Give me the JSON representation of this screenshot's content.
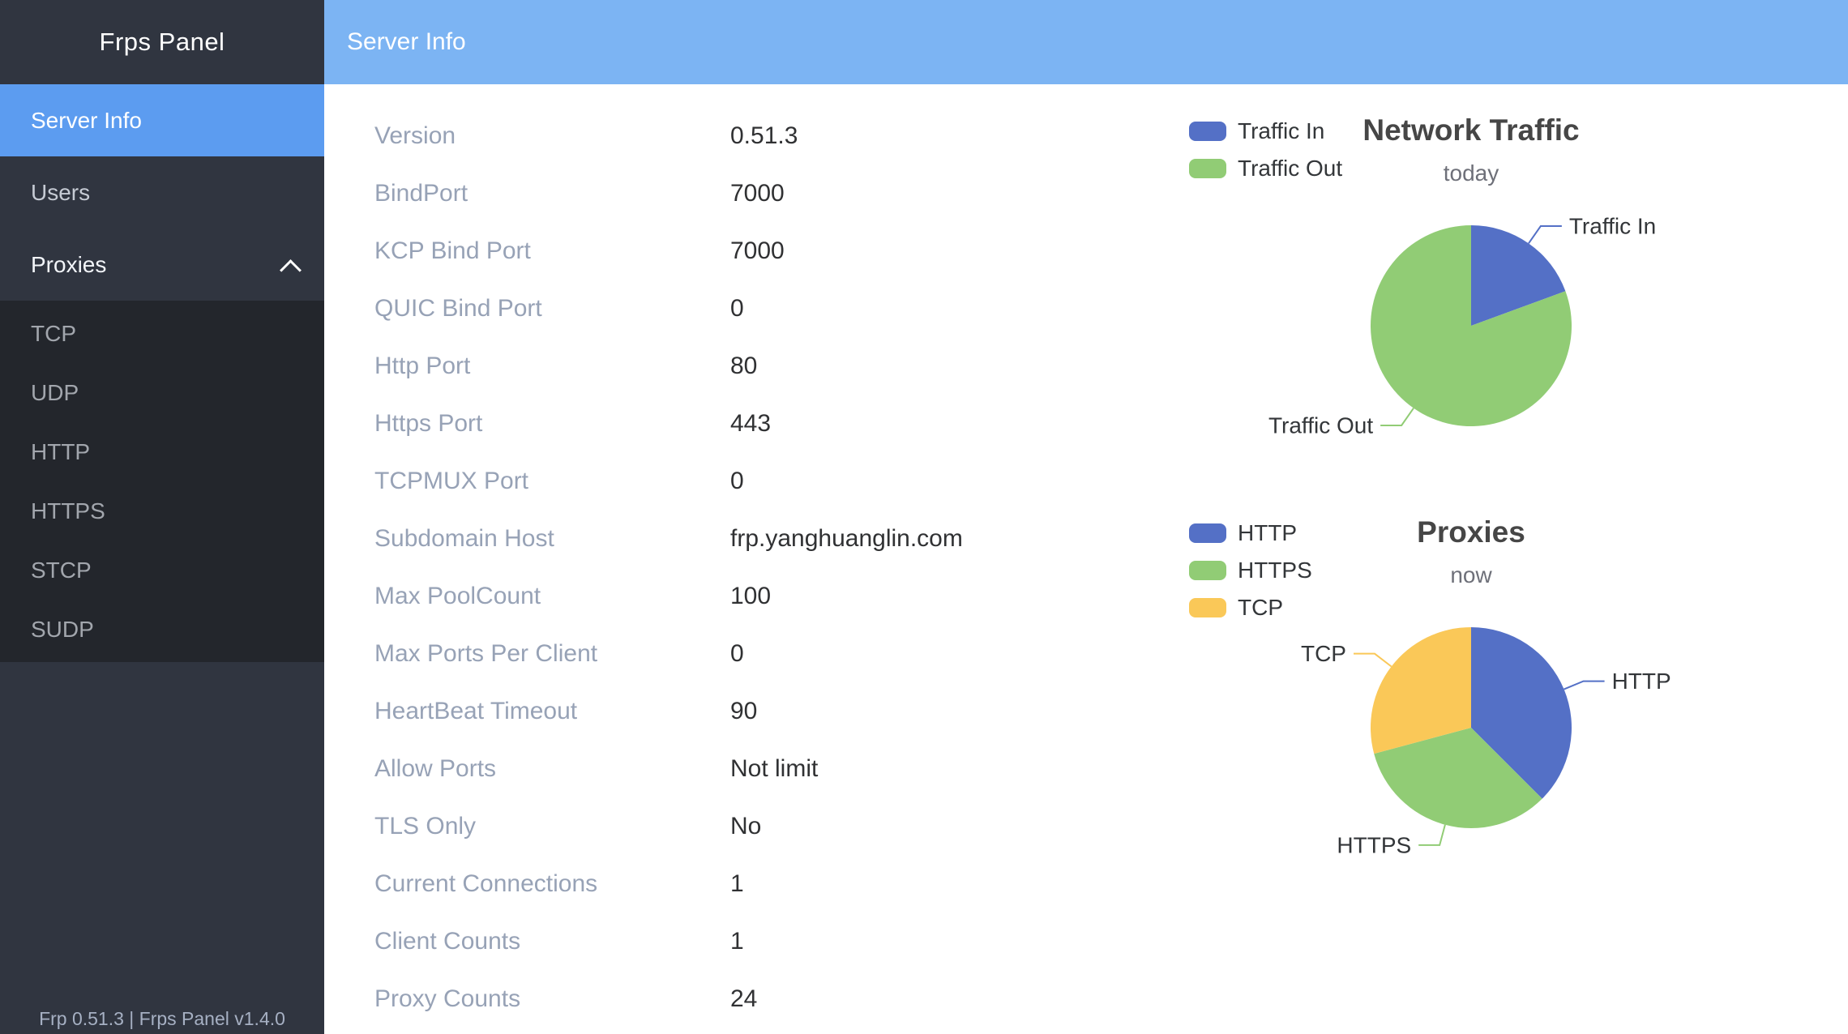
{
  "sidebar": {
    "brand": "Frps Panel",
    "items": [
      {
        "label": "Server Info",
        "selected": true
      },
      {
        "label": "Users",
        "selected": false
      },
      {
        "label": "Proxies",
        "selected": false,
        "expanded": true,
        "children": [
          "TCP",
          "UDP",
          "HTTP",
          "HTTPS",
          "STCP",
          "SUDP"
        ]
      }
    ],
    "footer": "Frp 0.51.3 | Frps Panel v1.4.0"
  },
  "header": {
    "title": "Server Info"
  },
  "server_info": {
    "rows": [
      {
        "label": "Version",
        "value": "0.51.3"
      },
      {
        "label": "BindPort",
        "value": "7000"
      },
      {
        "label": "KCP Bind Port",
        "value": "7000"
      },
      {
        "label": "QUIC Bind Port",
        "value": "0"
      },
      {
        "label": "Http Port",
        "value": "80"
      },
      {
        "label": "Https Port",
        "value": "443"
      },
      {
        "label": "TCPMUX Port",
        "value": "0"
      },
      {
        "label": "Subdomain Host",
        "value": "frp.yanghuanglin.com"
      },
      {
        "label": "Max PoolCount",
        "value": "100"
      },
      {
        "label": "Max Ports Per Client",
        "value": "0"
      },
      {
        "label": "HeartBeat Timeout",
        "value": "90"
      },
      {
        "label": "Allow Ports",
        "value": "Not limit"
      },
      {
        "label": "TLS Only",
        "value": "No"
      },
      {
        "label": "Current Connections",
        "value": "1"
      },
      {
        "label": "Client Counts",
        "value": "1"
      },
      {
        "label": "Proxy Counts",
        "value": "24"
      }
    ]
  },
  "chart_data": [
    {
      "type": "pie",
      "title": "Network Traffic",
      "subtitle": "today",
      "legend_position": "left",
      "series": [
        {
          "name": "Traffic In",
          "value": 19.4,
          "color": "#5470c6"
        },
        {
          "name": "Traffic Out",
          "value": 80.6,
          "color": "#91cc75"
        }
      ]
    },
    {
      "type": "pie",
      "title": "Proxies",
      "subtitle": "now",
      "legend_position": "left",
      "series": [
        {
          "name": "HTTP",
          "value": 9,
          "color": "#5470c6"
        },
        {
          "name": "HTTPS",
          "value": 8,
          "color": "#91cc75"
        },
        {
          "name": "TCP",
          "value": 7,
          "color": "#fac858"
        }
      ]
    }
  ],
  "colors": {
    "header_bar": "#7cb4f3",
    "selected_item": "#5c9cf0",
    "sidebar_bg": "#303540",
    "submenu_bg": "#23262c",
    "label_text": "#97a2b6",
    "value_text": "#303133"
  }
}
